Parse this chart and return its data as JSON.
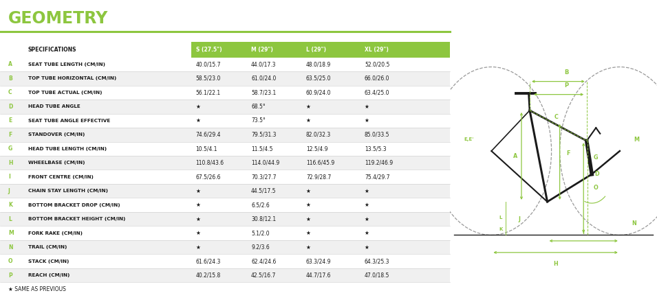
{
  "title": "GEOMETRY",
  "title_color": "#8dc63f",
  "header_bg_color": "#8dc63f",
  "header_text_color": "#ffffff",
  "alt_row_color": "#f0f0f0",
  "white_row_color": "#ffffff",
  "border_color": "#cccccc",
  "text_color": "#1a1a1a",
  "label_color": "#8dc63f",
  "col_headers": [
    "SPECIFICATIONS",
    "S (27.5\")",
    "M (29\")",
    "L (29\")",
    "XL (29\")"
  ],
  "rows": [
    [
      "A",
      "SEAT TUBE LENGTH (CM/IN)",
      "40.0/15.7",
      "44.0/17.3",
      "48.0/18.9",
      "52.0/20.5"
    ],
    [
      "B",
      "TOP TUBE HORIZONTAL (CM/IN)",
      "58.5/23.0",
      "61.0/24.0",
      "63.5/25.0",
      "66.0/26.0"
    ],
    [
      "C",
      "TOP TUBE ACTUAL (CM/IN)",
      "56.1/22.1",
      "58.7/23.1",
      "60.9/24.0",
      "63.4/25.0"
    ],
    [
      "D",
      "HEAD TUBE ANGLE",
      "★",
      "68.5°",
      "★",
      "★"
    ],
    [
      "E",
      "SEAT TUBE ANGLE EFFECTIVE",
      "★",
      "73.5°",
      "★",
      "★"
    ],
    [
      "F",
      "STANDOVER (CM/IN)",
      "74.6/29.4",
      "79.5/31.3",
      "82.0/32.3",
      "85.0/33.5"
    ],
    [
      "G",
      "HEAD TUBE LENGTH (CM/IN)",
      "10.5/4.1",
      "11.5/4.5",
      "12.5/4.9",
      "13.5/5.3"
    ],
    [
      "H",
      "WHEELBASE (CM/IN)",
      "110.8/43.6",
      "114.0/44.9",
      "116.6/45.9",
      "119.2/46.9"
    ],
    [
      "I",
      "FRONT CENTRE (CM/IN)",
      "67.5/26.6",
      "70.3/27.7",
      "72.9/28.7",
      "75.4/29.7"
    ],
    [
      "J",
      "CHAIN STAY LENGTH (CM/IN)",
      "★",
      "44.5/17.5",
      "★",
      "★"
    ],
    [
      "K",
      "BOTTOM BRACKET DROP (CM/IN)",
      "★",
      "6.5/2.6",
      "★",
      "★"
    ],
    [
      "L",
      "BOTTOM BRACKET HEIGHT (CM/IN)",
      "★",
      "30.8/12.1",
      "★",
      "★"
    ],
    [
      "M",
      "FORK RAKE (CM/IN)",
      "★",
      "5.1/2.0",
      "★",
      "★"
    ],
    [
      "N",
      "TRAIL (CM/IN)",
      "★",
      "9.2/3.6",
      "★",
      "★"
    ],
    [
      "O",
      "STACK (CM/IN)",
      "61.6/24.3",
      "62.4/24.6",
      "63.3/24.9",
      "64.3/25.3"
    ],
    [
      "P",
      "REACH (CM/IN)",
      "40.2/15.8",
      "42.5/16.7",
      "44.7/17.6",
      "47.0/18.5"
    ]
  ],
  "footnote": "★ SAME AS PREVIOUS",
  "green": "#8dc63f",
  "dark": "#1a1a1a",
  "fig_width": 9.55,
  "fig_height": 4.4
}
